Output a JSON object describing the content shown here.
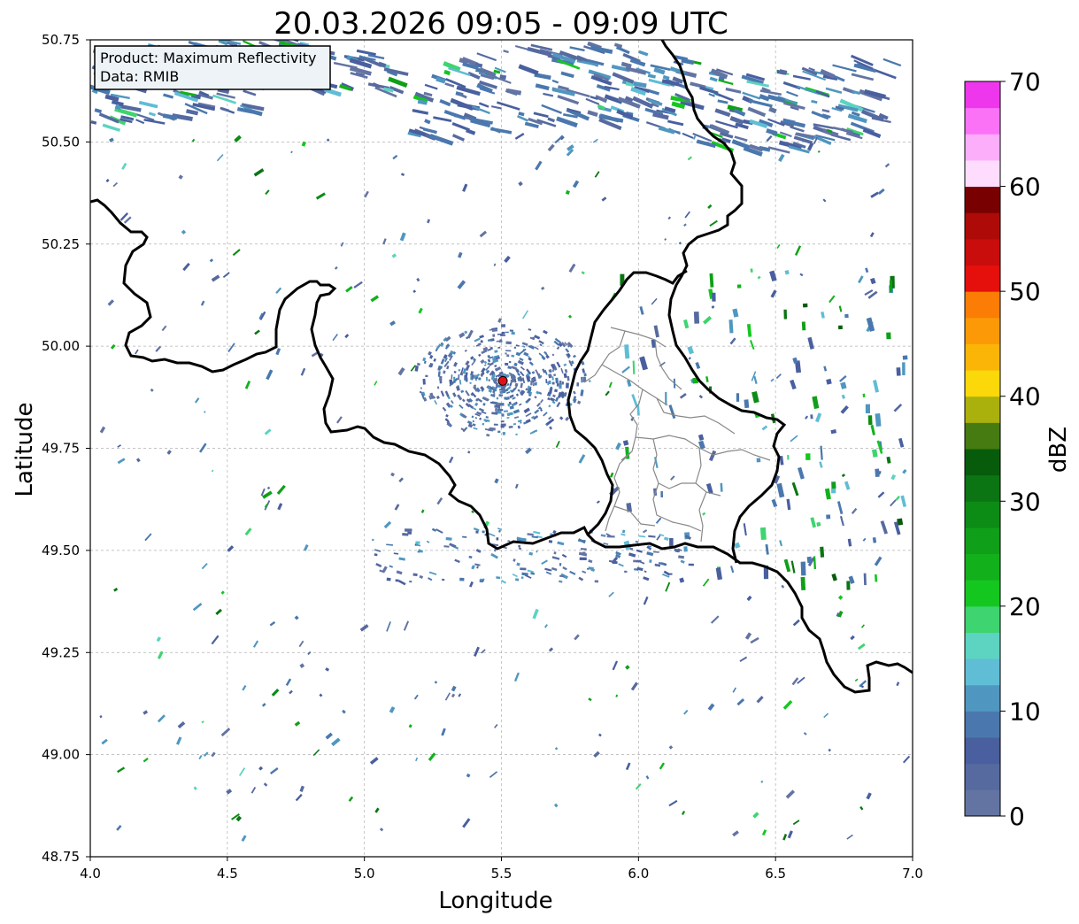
{
  "title": "20.03.2026 09:05 - 09:09 UTC",
  "info_box": {
    "product_line": "Product: Maximum Reflectivity",
    "data_line": "Data: RMIB"
  },
  "axes": {
    "xlabel": "Longitude",
    "ylabel": "Latitude",
    "xlim": [
      4.0,
      7.0
    ],
    "ylim": [
      48.75,
      50.75
    ],
    "x_ticks": [
      "4.0",
      "4.5",
      "5.0",
      "5.5",
      "6.0",
      "6.5",
      "7.0"
    ],
    "y_ticks": [
      "48.75",
      "49.00",
      "49.25",
      "49.50",
      "49.75",
      "50.00",
      "50.25",
      "50.50",
      "50.75"
    ],
    "grid": true
  },
  "radar_site": {
    "lon": 5.505,
    "lat": 49.915,
    "color": "#e0101a"
  },
  "colorbar": {
    "label": "dBZ",
    "min": 0,
    "max": 70,
    "tick_labels": [
      "0",
      "10",
      "20",
      "30",
      "40",
      "50",
      "60",
      "70"
    ],
    "colors": [
      "#6374a3",
      "#566aa0",
      "#495f9f",
      "#4a78ae",
      "#4f97c0",
      "#5fbdd5",
      "#5dd3c1",
      "#3ed46f",
      "#14c71f",
      "#12b11b",
      "#109f18",
      "#0d8c15",
      "#0a7512",
      "#075c0c",
      "#467b11",
      "#aab00c",
      "#fad80a",
      "#fab507",
      "#fb9a06",
      "#fb7d06",
      "#e50f0c",
      "#c90c0c",
      "#ae0a08",
      "#790000",
      "#fedcfd",
      "#fcaefa",
      "#fc72f7",
      "#ee37ec"
    ]
  }
}
